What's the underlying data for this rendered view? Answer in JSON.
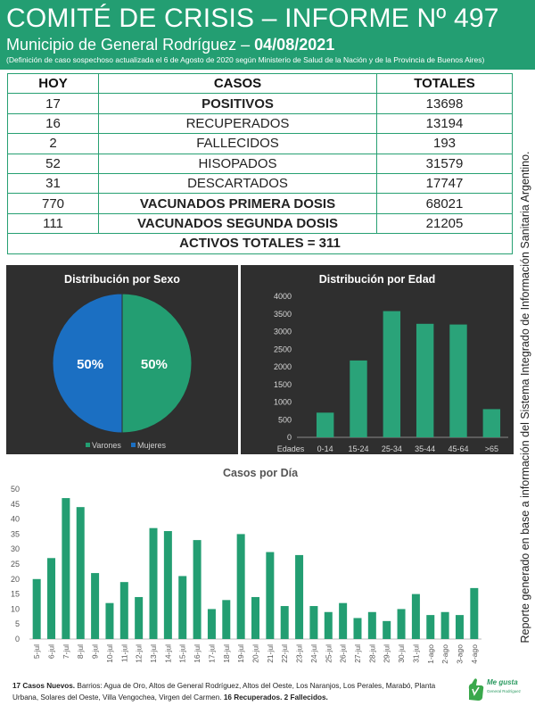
{
  "header": {
    "title": "COMITÉ DE CRISIS – INFORME Nº 497",
    "subtitle_prefix": "Municipio de General Rodríguez – ",
    "date": "04/08/2021",
    "note": "(Definición de caso sospechoso actualizada el 6 de Agosto de 2020 según Ministerio de Salud de la Nación y de la Provincia de Buenos Aires)"
  },
  "side_text": "Reporte generado en base a información del Sistema Integrado de Información Sanitaria Argentino.",
  "table": {
    "headers": [
      "HOY",
      "CASOS",
      "TOTALES"
    ],
    "rows": [
      {
        "hoy": "17",
        "casos": "POSITIVOS",
        "totales": "13698"
      },
      {
        "hoy": "16",
        "casos": "RECUPERADOS",
        "totales": "13194"
      },
      {
        "hoy": "2",
        "casos": "FALLECIDOS",
        "totales": "193"
      },
      {
        "hoy": "52",
        "casos": "HISOPADOS",
        "totales": "31579"
      },
      {
        "hoy": "31",
        "casos": "DESCARTADOS",
        "totales": "17747"
      },
      {
        "hoy": "770",
        "casos": "VACUNADOS PRIMERA DOSIS",
        "totales": "68021"
      },
      {
        "hoy": "111",
        "casos": "VACUNADOS SEGUNDA DOSIS",
        "totales": "21205"
      }
    ],
    "activos": "ACTIVOS TOTALES = 311"
  },
  "colors": {
    "green": "#239e72",
    "blue": "#1b6fc2",
    "orange": "#f39a1f",
    "panel": "#2f2f2f"
  },
  "chart_data": [
    {
      "type": "pie",
      "title": "Distribución por Sexo",
      "labels": [
        "Varones",
        "Mujeres"
      ],
      "values": [
        50,
        50
      ],
      "data_labels": [
        "50%",
        "50%"
      ],
      "colors": [
        "#239e72",
        "#1b6fc2"
      ],
      "legend": "bottom"
    },
    {
      "type": "bar",
      "title": "Distribución por Edad",
      "categories": [
        "0-14",
        "15-24",
        "25-34",
        "35-44",
        "45-64",
        ">65"
      ],
      "values": [
        700,
        2180,
        3580,
        3220,
        3200,
        800
      ],
      "xlabel": "Edades",
      "ylim": [
        0,
        4000
      ],
      "yticks": [
        "0",
        "500",
        "1000",
        "1500",
        "2000",
        "2500",
        "3000",
        "3500",
        "4000"
      ]
    },
    {
      "type": "bar",
      "title": "Casos por Día",
      "categories": [
        "5-jul",
        "6-jul",
        "7-jul",
        "8-jul",
        "9-jul",
        "10-jul",
        "11-jul",
        "12-jul",
        "13-jul",
        "14-jul",
        "15-jul",
        "16-jul",
        "17-jul",
        "18-jul",
        "19-jul",
        "20-jul",
        "21-jul",
        "22-jul",
        "23-jul",
        "24-jul",
        "25-jul",
        "26-jul",
        "27-jul",
        "28-jul",
        "29-jul",
        "30-jul",
        "31-jul",
        "1-ago",
        "2-ago",
        "3-ago",
        "4-ago"
      ],
      "values": [
        20,
        27,
        47,
        44,
        22,
        12,
        19,
        14,
        37,
        36,
        21,
        33,
        10,
        13,
        35,
        14,
        29,
        11,
        28,
        11,
        9,
        12,
        7,
        9,
        6,
        10,
        15,
        8,
        9,
        8,
        17
      ],
      "ylim": [
        0,
        50
      ],
      "yticks": [
        "0",
        "5",
        "10",
        "15",
        "20",
        "25",
        "30",
        "35",
        "40",
        "45",
        "50"
      ],
      "grid": false
    }
  ],
  "footer": {
    "new_cases_label": "17 Casos Nuevos.",
    "barrios": " Barrios: Agua de Oro, Altos de General Rodríguez, Altos del Oeste, Los Naranjos, Los Perales, Marabó, Planta Urbana, Solares del Oeste, Villa Vengochea, Virgen del Carmen. ",
    "summary": "16 Recuperados. 2 Fallecidos."
  },
  "logo": {
    "text": "Me gusta",
    "sub": "General Rodríguez"
  }
}
